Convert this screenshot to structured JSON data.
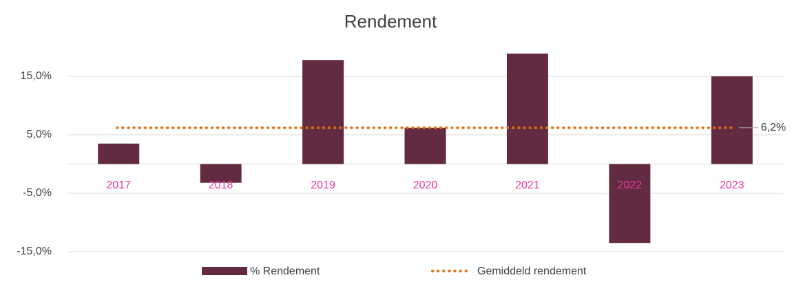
{
  "chart_data": {
    "type": "bar",
    "title": "Rendement",
    "categories": [
      "2017",
      "2018",
      "2019",
      "2020",
      "2021",
      "2022",
      "2023"
    ],
    "category_color": "#e6379a",
    "series": [
      {
        "name": "% Rendement",
        "type": "bar",
        "color": "#632b41",
        "values": [
          3.5,
          -3.2,
          17.8,
          6.2,
          18.9,
          -13.5,
          15.0
        ]
      },
      {
        "name": "Gemiddeld rendement",
        "type": "line",
        "style": "dotted",
        "color": "#e46c0a",
        "values": [
          6.2,
          6.2,
          6.2,
          6.2,
          6.2,
          6.2,
          6.2
        ],
        "value_labels": [
          null,
          null,
          null,
          null,
          null,
          null,
          "6,2%"
        ]
      }
    ],
    "ylim": [
      -15,
      20
    ],
    "yticks": [
      {
        "value": 15,
        "label": "15,0%"
      },
      {
        "value": 5,
        "label": "5,0%"
      },
      {
        "value": -5,
        "label": "-5,0%"
      },
      {
        "value": -15,
        "label": "-15,0%"
      }
    ],
    "grid": true,
    "legend": "bottom"
  }
}
